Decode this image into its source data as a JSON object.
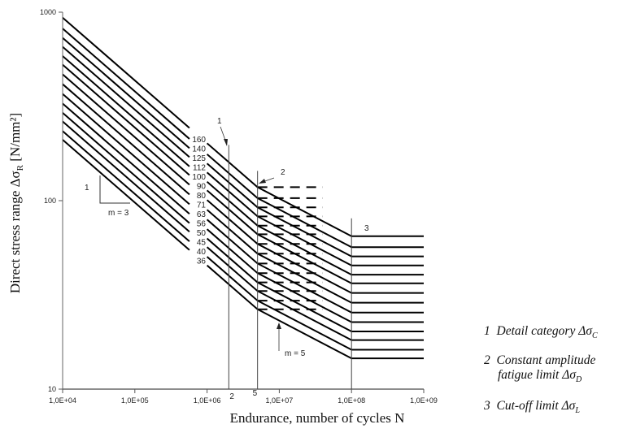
{
  "chart_data": {
    "type": "line",
    "title": "",
    "xlabel": "Endurance, number of cycles N",
    "ylabel": "Direct stress range Δσ",
    "ylabel_sub": "R",
    "ylabel_unit": " [N/mm²]",
    "xscale": "log",
    "yscale": "log",
    "xlim": [
      10000,
      1000000000
    ],
    "ylim": [
      10,
      1000
    ],
    "x_ticks": [
      {
        "value": 10000,
        "label": "1,0E+04"
      },
      {
        "value": 100000,
        "label": "1,0E+05"
      },
      {
        "value": 1000000,
        "label": "1,0E+06"
      },
      {
        "value": 10000000,
        "label": "1,0E+07"
      },
      {
        "value": 100000000,
        "label": "1,0E+08"
      },
      {
        "value": 1000000000,
        "label": "1,0E+09"
      }
    ],
    "y_ticks": [
      {
        "value": 1000,
        "label": "1000"
      },
      {
        "value": 100,
        "label": "100"
      },
      {
        "value": 10,
        "label": "10"
      }
    ],
    "grid": false,
    "detail_categories": [
      160,
      140,
      125,
      112,
      100,
      90,
      80,
      71,
      63,
      56,
      50,
      45,
      40,
      36
    ],
    "N_C": 2000000,
    "N_D": 5000000,
    "N_L": 100000000,
    "slope_m1": 3,
    "slope_m2": 5,
    "reference_lines": [
      {
        "N": 2000000,
        "label": "2"
      },
      {
        "N": 5000000,
        "label": "5"
      },
      {
        "N": 100000000,
        "label": ""
      }
    ],
    "annotations": {
      "slope1_rise": "1",
      "slope1_label": "m = 3",
      "slope2_label": "m = 5",
      "marker1": "1",
      "marker2": "2",
      "marker3": "3"
    },
    "legend": [
      {
        "num": "1",
        "text": "Detail category Δσ",
        "sub": "C"
      },
      {
        "num": "2",
        "text": "Constant amplitude",
        "text2": "fatigue limit Δσ",
        "sub": "D"
      },
      {
        "num": "3",
        "text": "Cut-off limit Δσ",
        "sub": "L"
      }
    ]
  }
}
